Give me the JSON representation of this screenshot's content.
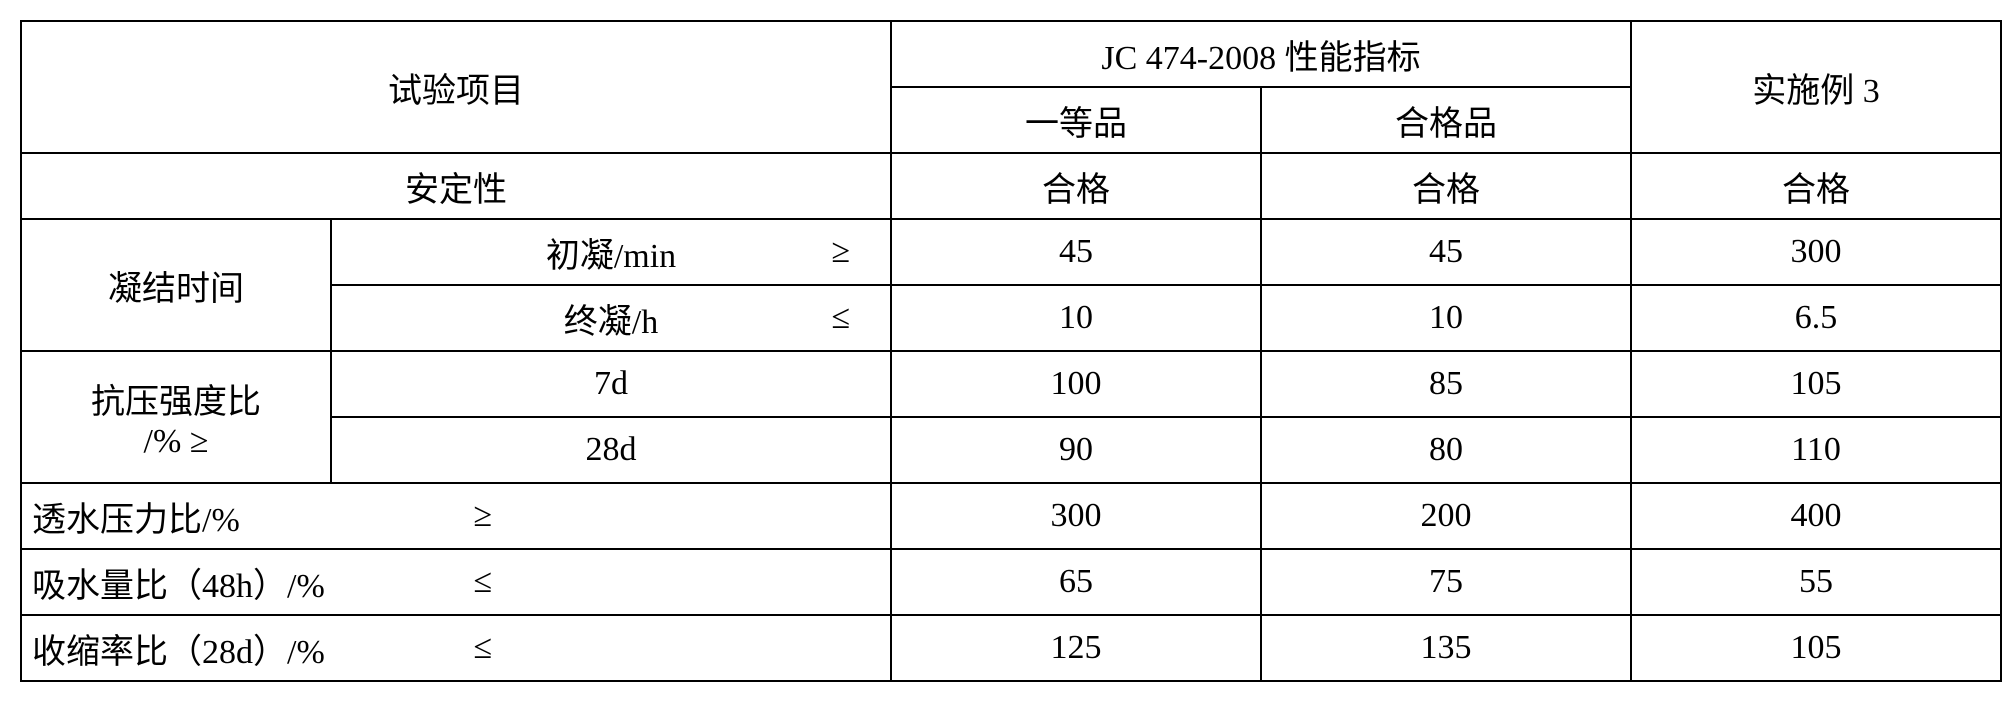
{
  "header": {
    "test_item": "试验项目",
    "spec_title": "JC 474-2008 性能指标",
    "grade1": "一等品",
    "grade2": "合格品",
    "example3": "实施例 3"
  },
  "rows": {
    "soundness": {
      "label": "安定性",
      "g1": "合格",
      "g2": "合格",
      "ex3": "合格"
    },
    "setting": {
      "group_label": "凝结时间",
      "initial": {
        "label": "初凝/min",
        "sym": "≥",
        "g1": "45",
        "g2": "45",
        "ex3": "300"
      },
      "final": {
        "label": "终凝/h",
        "sym": "≤",
        "g1": "10",
        "g2": "10",
        "ex3": "6.5"
      }
    },
    "comp": {
      "group_label_l1": "抗压强度比",
      "group_label_l2": "/% ≥",
      "d7": {
        "label": "7d",
        "g1": "100",
        "g2": "85",
        "ex3": "105"
      },
      "d28": {
        "label": "28d",
        "g1": "90",
        "g2": "80",
        "ex3": "110"
      }
    },
    "perm": {
      "label": "透水压力比/%",
      "sym": "≥",
      "g1": "300",
      "g2": "200",
      "ex3": "400"
    },
    "absorb": {
      "label": "吸水量比（48h）/%",
      "sym": "≤",
      "g1": "65",
      "g2": "75",
      "ex3": "55"
    },
    "shrink": {
      "label": "收缩率比（28d）/%",
      "sym": "≤",
      "g1": "125",
      "g2": "135",
      "ex3": "105"
    }
  }
}
